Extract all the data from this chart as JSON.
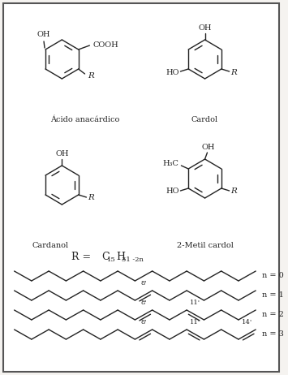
{
  "bg_color": "#f5f3f0",
  "border_color": "#555555",
  "line_color": "#222222",
  "text_color": "#222222",
  "fig_width": 3.55,
  "fig_height": 4.62,
  "title1": "Ácido anacárdico",
  "title2": "Cardol",
  "title3": "Cardanol",
  "title4": "2-Metil cardol",
  "n0_label": "n = 0",
  "n1_label": "n = 1",
  "n2_label": "n = 2",
  "n3_label": "n = 3",
  "label_8p": "8'",
  "label_11p": "11'",
  "label_14p": "14'"
}
